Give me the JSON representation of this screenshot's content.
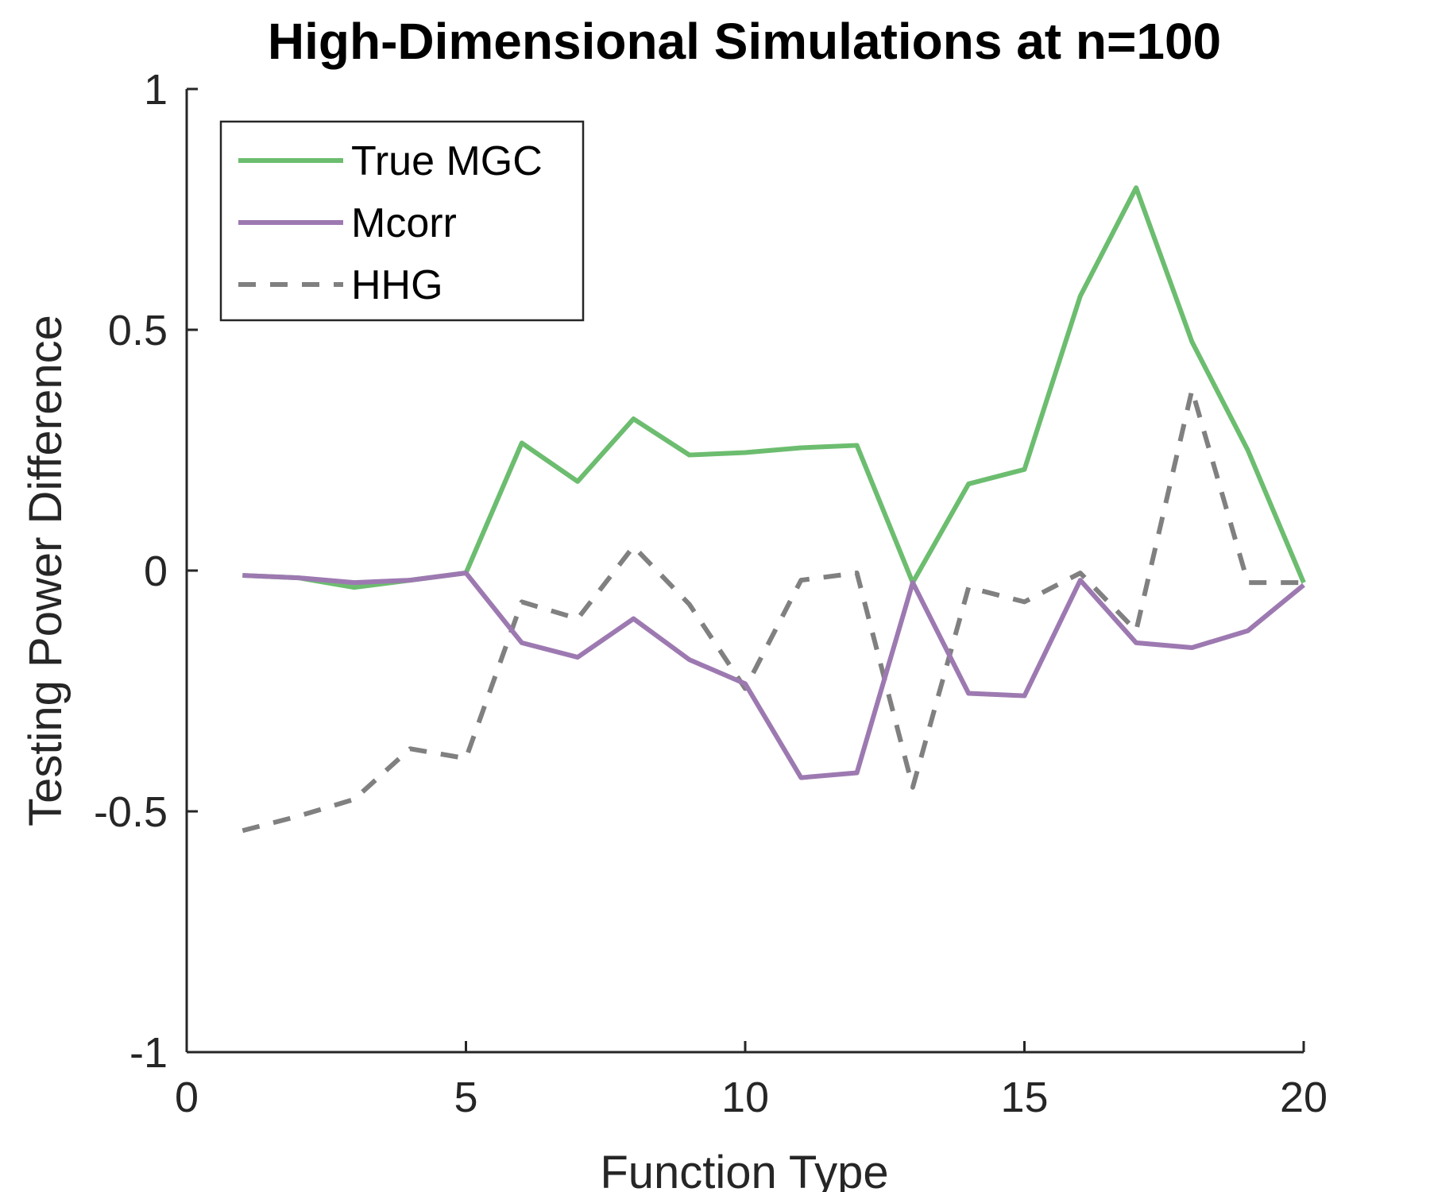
{
  "chart_data": {
    "type": "line",
    "title": "High-Dimensional Simulations at n=100",
    "xlabel": "Function Type",
    "ylabel": "Testing Power Difference",
    "xlim": [
      0,
      20
    ],
    "ylim": [
      -1,
      1
    ],
    "xticks": [
      0,
      5,
      10,
      15,
      20
    ],
    "yticks": [
      -1,
      -0.5,
      0,
      0.5,
      1
    ],
    "xtick_labels": [
      "0",
      "5",
      "10",
      "15",
      "20"
    ],
    "ytick_labels": [
      "-1",
      "-0.5",
      "0",
      "0.5",
      "1"
    ],
    "grid": false,
    "legend_position": "top-left",
    "x": [
      1,
      2,
      3,
      4,
      5,
      6,
      7,
      8,
      9,
      10,
      11,
      12,
      13,
      14,
      15,
      16,
      17,
      18,
      19,
      20
    ],
    "series": [
      {
        "name": "True MGC",
        "color": "#6cbd6f",
        "dash": "solid",
        "values": [
          -0.01,
          -0.015,
          -0.035,
          -0.02,
          -0.005,
          0.265,
          0.185,
          0.315,
          0.24,
          0.245,
          0.255,
          0.26,
          -0.025,
          0.18,
          0.21,
          0.57,
          0.795,
          0.475,
          0.25,
          -0.025
        ]
      },
      {
        "name": "Mcorr",
        "color": "#9d79b1",
        "dash": "solid",
        "values": [
          -0.01,
          -0.015,
          -0.025,
          -0.02,
          -0.005,
          -0.15,
          -0.18,
          -0.1,
          -0.185,
          -0.235,
          -0.43,
          -0.42,
          -0.025,
          -0.255,
          -0.26,
          -0.02,
          -0.15,
          -0.16,
          -0.125,
          -0.03
        ]
      },
      {
        "name": "HHG",
        "color": "#808080",
        "dash": "dashed",
        "values": [
          -0.54,
          -0.51,
          -0.475,
          -0.37,
          -0.39,
          -0.065,
          -0.1,
          0.05,
          -0.07,
          -0.245,
          -0.02,
          -0.005,
          -0.45,
          -0.035,
          -0.065,
          -0.005,
          -0.125,
          0.375,
          -0.025,
          -0.025
        ]
      }
    ]
  }
}
